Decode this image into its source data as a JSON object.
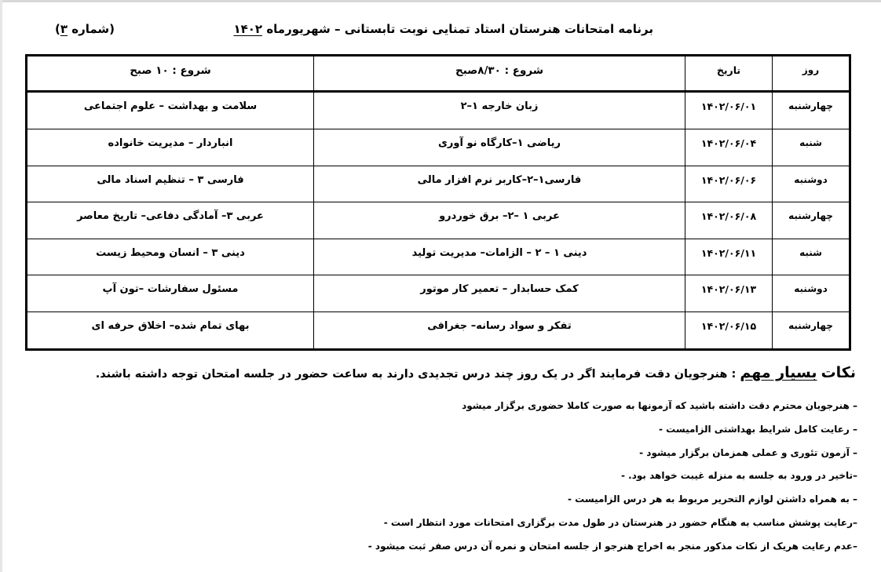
{
  "header": {
    "title": "برنامه امتحانات هنرستان استاد تمنایی نوبت تابستانی – شهریورماه",
    "year": "۱۴۰۲",
    "number_prefix": "(شماره",
    "number": "۳",
    "number_suffix": ")"
  },
  "table": {
    "headers": {
      "day": "روز",
      "date": "تاریخ",
      "session1": "شروع : ۸/۳۰صبح",
      "session2": "شروع : ۱۰ صبح"
    },
    "rows": [
      {
        "day": "چهارشنبه",
        "date": "۱۴۰۲/۰۶/۰۱",
        "session1": "زبان خارجه ۱–۲",
        "session2": "سلامت و بهداشت – علوم اجتماعی"
      },
      {
        "day": "شنبه",
        "date": "۱۴۰۲/۰۶/۰۴",
        "session1": "ریاضی ۱–کارگاه نو آوری",
        "session2": "انباردار – مدیریت خانواده"
      },
      {
        "day": "دوشنبه",
        "date": "۱۴۰۲/۰۶/۰۶",
        "session1": "فارسی۱–۲–کاربر نرم افزار مالی",
        "session2": "فارسی ۳ – تنظیم اسناد مالی"
      },
      {
        "day": "چهارشنبه",
        "date": "۱۴۰۲/۰۶/۰۸",
        "session1": "عربی ۱ –۲– برق خوردرو",
        "session2": "عربی ۳– آمادگی دفاعی– تاریخ معاصر"
      },
      {
        "day": "شنبه",
        "date": "۱۴۰۲/۰۶/۱۱",
        "session1": "دینی ۱ – ۲ – الزامات– مدیریت تولید",
        "session2": "دینی ۳ – انسان ومحیط زیست"
      },
      {
        "day": "دوشنبه",
        "date": "۱۴۰۲/۰۶/۱۳",
        "session1": "کمک حسابدار – تعمیر کار موتور",
        "session2": "مسئول سفارشات –تون آپ"
      },
      {
        "day": "چهارشنبه",
        "date": "۱۴۰۲/۰۶/۱۵",
        "session1": "تفکر و سواد رسانه– جغرافی",
        "session2": "بهای تمام شده– اخلاق حرفه ای"
      }
    ]
  },
  "notes": {
    "heading_prefix": "نکات",
    "heading_underlined": "بسیار مهم",
    "heading_text": ": هنرجویان دقت فرمایند اگر در یک روز چند درس تجدیدی دارند به ساعت حضور در جلسه امتحان توجه داشته باشند.",
    "items": [
      "– هنرجویان محترم دقت داشته باشید که آزمونها به صورت کاملا حضوری برگزار میشود",
      "– رعایت کامل شرایط بهداشتی الزامیست    -",
      "– آزمون تئوری و عملی همزمان برگزار میشود     -",
      "–تاخیر در ورود به جلسه به منزله غیبت خواهد بود.     -",
      "– به همراه داشتن لوازم التحریر مربوط به هر درس الزامیست     -",
      "–رعایت پوشش مناسب به هنگام حضور در هنرستان در طول مدت برگزاری امتحانات مورد انتظار است     -",
      "–عدم رعایت هریک از نکات مذکور منجر به اخراج هنرجو از جلسه امتحان و نمره آن درس صفر ثبت میشود     -"
    ]
  }
}
